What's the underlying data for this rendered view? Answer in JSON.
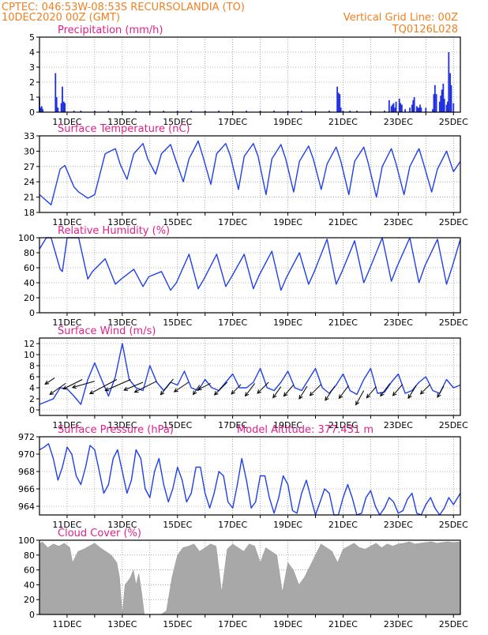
{
  "header": {
    "line1_left": "CPTEC:   046:53W-08:53S   RECURSOLANDIA (TO)",
    "line2_left": "10DEC2020 00Z (GMT)",
    "line2_right": "Vertical Grid Line: 00Z",
    "line3_right": "TQ0126L028"
  },
  "colors": {
    "header": "#f08020",
    "title": "#e0208a",
    "series": "#2040e8",
    "bars": "#2030e0",
    "cloud": "#a8a8a8"
  },
  "chart_data": [
    {
      "id": "precip",
      "type": "bar",
      "title": "Precipitation (mm/h)",
      "x_unit": "days since 10DEC2020 00Z",
      "xlim": [
        0,
        15.25
      ],
      "ylim": [
        0,
        5
      ],
      "yticks": [
        "0",
        "1",
        "2",
        "3",
        "4",
        "5"
      ],
      "xtick_labels": [
        "11DEC",
        "13DEC",
        "15DEC",
        "17DEC",
        "19DEC",
        "21DEC",
        "23DEC",
        "25DEC"
      ],
      "show_xtick_labels": true,
      "x": [
        0.0,
        0.04,
        0.08,
        0.12,
        0.58,
        0.62,
        0.67,
        0.79,
        0.83,
        0.88,
        0.92,
        1.25,
        1.5,
        2.0,
        2.5,
        3.0,
        3.5,
        4.0,
        4.5,
        5.0,
        5.5,
        6.0,
        6.5,
        7.0,
        7.5,
        8.0,
        8.5,
        9.0,
        9.5,
        10.0,
        10.5,
        10.79,
        10.83,
        10.88,
        10.92,
        11.0,
        11.25,
        11.5,
        12.0,
        12.5,
        12.67,
        12.75,
        12.79,
        12.83,
        12.88,
        12.92,
        13.04,
        13.08,
        13.13,
        13.25,
        13.42,
        13.5,
        13.54,
        13.58,
        13.67,
        13.71,
        13.75,
        13.79,
        13.83,
        14.0,
        14.25,
        14.29,
        14.33,
        14.38,
        14.5,
        14.54,
        14.58,
        14.63,
        14.67,
        14.75,
        14.79,
        14.83,
        14.88,
        14.92,
        15.0
      ],
      "values": [
        1.0,
        0.3,
        0.4,
        0.2,
        2.6,
        1.0,
        0.3,
        0.6,
        1.7,
        0.7,
        0.6,
        0.1,
        0.1,
        0.1,
        0.1,
        0.1,
        0.1,
        0.1,
        0.1,
        0.1,
        0.1,
        0.1,
        0.1,
        0.1,
        0.1,
        0.1,
        0.1,
        0.1,
        0.1,
        0.1,
        0.1,
        1.7,
        1.3,
        1.2,
        0.3,
        0.1,
        0.1,
        0.1,
        0.1,
        0.1,
        0.8,
        0.4,
        0.5,
        0.6,
        0.3,
        0.7,
        0.9,
        0.6,
        0.5,
        0.2,
        0.3,
        0.5,
        0.8,
        1.0,
        0.4,
        0.3,
        0.3,
        0.5,
        0.3,
        0.3,
        0.2,
        1.2,
        1.8,
        1.2,
        0.7,
        1.1,
        1.5,
        1.9,
        0.9,
        0.5,
        0.7,
        4.0,
        2.6,
        1.8,
        0.6
      ]
    },
    {
      "id": "temp",
      "type": "line",
      "title": "Surface Temperature (nC)",
      "x_unit": "days since 10DEC2020 00Z",
      "xlim": [
        0,
        15.25
      ],
      "ylim": [
        18,
        33
      ],
      "yticks": [
        "18",
        "21",
        "24",
        "27",
        "30",
        "33"
      ],
      "xtick_labels": [
        "11DEC",
        "13DEC",
        "15DEC",
        "17DEC",
        "19DEC",
        "21DEC",
        "23DEC",
        "25DEC"
      ],
      "show_xtick_labels": true,
      "x": [
        0.0,
        0.42,
        0.75,
        0.92,
        1.25,
        1.42,
        1.75,
        1.83,
        2.0,
        2.38,
        2.75,
        2.92,
        3.17,
        3.42,
        3.75,
        3.92,
        4.21,
        4.42,
        4.75,
        4.92,
        5.21,
        5.42,
        5.75,
        5.92,
        6.21,
        6.42,
        6.75,
        6.92,
        7.21,
        7.42,
        7.75,
        7.92,
        8.21,
        8.42,
        8.75,
        8.92,
        9.21,
        9.42,
        9.75,
        9.92,
        10.21,
        10.42,
        10.75,
        10.92,
        11.21,
        11.42,
        11.75,
        11.92,
        12.21,
        12.42,
        12.75,
        12.92,
        13.21,
        13.42,
        13.75,
        13.92,
        14.21,
        14.42,
        14.75,
        15.0,
        15.25
      ],
      "y": [
        21.5,
        19.5,
        26.5,
        27.2,
        23.0,
        22.0,
        20.8,
        21.0,
        21.5,
        29.5,
        30.5,
        27.5,
        24.5,
        29.5,
        31.5,
        28.5,
        25.5,
        29.5,
        31.3,
        28.5,
        24.0,
        28.5,
        32.0,
        29.0,
        23.5,
        29.5,
        31.5,
        29.0,
        22.5,
        29.0,
        31.5,
        29.0,
        21.5,
        28.5,
        31.3,
        28.5,
        22.0,
        28.0,
        31.0,
        28.5,
        22.5,
        27.5,
        30.8,
        28.0,
        21.5,
        28.0,
        30.8,
        27.5,
        21.0,
        27.0,
        30.5,
        27.5,
        21.5,
        27.0,
        30.5,
        27.5,
        22.0,
        26.5,
        30.0,
        26.0,
        28.0
      ]
    },
    {
      "id": "rh",
      "type": "line",
      "title": "Relative Humidity (%)",
      "x_unit": "days since 10DEC2020 00Z",
      "xlim": [
        0,
        15.25
      ],
      "ylim": [
        0,
        100
      ],
      "yticks": [
        "0",
        "20",
        "40",
        "60",
        "80",
        "100"
      ],
      "xtick_labels": [
        "11DEC",
        "13DEC",
        "15DEC",
        "17DEC",
        "19DEC",
        "21DEC",
        "23DEC",
        "25DEC"
      ],
      "show_xtick_labels": true,
      "x": [
        0.0,
        0.25,
        0.42,
        0.75,
        0.83,
        1.0,
        1.25,
        1.42,
        1.75,
        1.92,
        2.38,
        2.75,
        2.96,
        3.42,
        3.75,
        3.96,
        4.42,
        4.75,
        4.96,
        5.42,
        5.75,
        5.96,
        6.42,
        6.75,
        6.96,
        7.42,
        7.75,
        7.96,
        8.42,
        8.75,
        8.96,
        9.42,
        9.75,
        9.96,
        10.42,
        10.75,
        10.96,
        11.42,
        11.75,
        11.96,
        12.42,
        12.75,
        12.96,
        13.42,
        13.75,
        13.96,
        14.42,
        14.75,
        14.96,
        15.25
      ],
      "y": [
        85,
        100,
        100,
        58,
        55,
        100,
        100,
        100,
        45,
        55,
        72,
        38,
        45,
        58,
        35,
        48,
        55,
        30,
        40,
        78,
        32,
        45,
        78,
        35,
        48,
        78,
        32,
        50,
        82,
        30,
        48,
        80,
        38,
        55,
        98,
        38,
        55,
        96,
        40,
        58,
        100,
        42,
        62,
        100,
        40,
        62,
        98,
        38,
        62,
        98
      ]
    },
    {
      "id": "wind",
      "type": "line",
      "title": "Surface Wind (m/s)",
      "x_unit": "days since 10DEC2020 00Z",
      "xlim": [
        0,
        15.25
      ],
      "ylim": [
        -1,
        13
      ],
      "yticks": [
        "0",
        "2",
        "4",
        "6",
        "8",
        "10",
        "12"
      ],
      "ytick_values": [
        0,
        2,
        4,
        6,
        8,
        10,
        12
      ],
      "xtick_labels": [
        "11DEC",
        "13DEC",
        "15DEC",
        "17DEC",
        "19DEC",
        "21DEC",
        "23DEC",
        "25DEC"
      ],
      "show_xtick_labels": true,
      "x": [
        0.0,
        0.25,
        0.5,
        0.75,
        1.0,
        1.25,
        1.5,
        1.75,
        2.0,
        2.25,
        2.5,
        2.75,
        3.0,
        3.25,
        3.5,
        3.75,
        4.0,
        4.25,
        4.5,
        4.75,
        5.0,
        5.25,
        5.5,
        5.75,
        6.0,
        6.25,
        6.5,
        6.75,
        7.0,
        7.25,
        7.5,
        7.75,
        8.0,
        8.25,
        8.5,
        8.75,
        9.0,
        9.25,
        9.5,
        9.75,
        10.0,
        10.25,
        10.5,
        10.75,
        11.0,
        11.25,
        11.5,
        11.75,
        12.0,
        12.25,
        12.5,
        12.75,
        13.0,
        13.25,
        13.5,
        13.75,
        14.0,
        14.25,
        14.5,
        14.75,
        15.0,
        15.25
      ],
      "y": [
        1.0,
        1.5,
        2.0,
        4.0,
        3.8,
        2.5,
        1.0,
        5.5,
        8.5,
        5.5,
        2.5,
        6.0,
        12.0,
        5.5,
        4.0,
        3.5,
        8.0,
        5.0,
        3.5,
        5.0,
        4.5,
        7.0,
        4.0,
        3.5,
        5.5,
        4.0,
        3.5,
        5.0,
        6.5,
        4.0,
        4.0,
        5.0,
        7.5,
        4.0,
        3.5,
        5.0,
        7.0,
        4.0,
        3.5,
        5.5,
        7.5,
        4.0,
        3.0,
        4.5,
        6.5,
        3.5,
        2.8,
        5.5,
        7.5,
        3.0,
        3.2,
        5.0,
        6.5,
        3.0,
        3.5,
        5.0,
        6.0,
        3.5,
        3.0,
        5.5,
        4.0,
        4.5
      ],
      "vectors": [
        {
          "x": 0.55,
          "y": 5.8,
          "u": -0.3,
          "v": -0.2
        },
        {
          "x": 0.95,
          "y": 4.8,
          "u": -0.5,
          "v": -0.35
        },
        {
          "x": 1.55,
          "y": 5.5,
          "u": -0.6,
          "v": -0.3
        },
        {
          "x": 2.0,
          "y": 5.2,
          "u": -0.7,
          "v": -0.2
        },
        {
          "x": 2.8,
          "y": 5.5,
          "u": -0.85,
          "v": -0.45
        },
        {
          "x": 3.3,
          "y": 5.5,
          "u": -0.8,
          "v": -0.35
        },
        {
          "x": 3.75,
          "y": 5.0,
          "u": -0.6,
          "v": -0.25
        },
        {
          "x": 4.25,
          "y": 5.2,
          "u": -0.7,
          "v": -0.35
        },
        {
          "x": 4.85,
          "y": 5.6,
          "u": -0.4,
          "v": -0.5
        },
        {
          "x": 5.4,
          "y": 5.0,
          "u": -0.45,
          "v": -0.3
        },
        {
          "x": 5.8,
          "y": 4.5,
          "u": -0.2,
          "v": -0.3
        },
        {
          "x": 6.2,
          "y": 4.8,
          "u": -0.4,
          "v": -0.2
        },
        {
          "x": 6.8,
          "y": 5.0,
          "u": -0.4,
          "v": -0.4
        },
        {
          "x": 7.3,
          "y": 4.6,
          "u": -0.3,
          "v": -0.3
        },
        {
          "x": 7.8,
          "y": 4.8,
          "u": -0.3,
          "v": -0.4
        },
        {
          "x": 8.3,
          "y": 5.0,
          "u": -0.35,
          "v": -0.35
        },
        {
          "x": 8.75,
          "y": 4.2,
          "u": -0.25,
          "v": -0.35
        },
        {
          "x": 9.2,
          "y": 4.5,
          "u": -0.3,
          "v": -0.35
        },
        {
          "x": 9.7,
          "y": 4.3,
          "u": -0.25,
          "v": -0.4
        },
        {
          "x": 10.2,
          "y": 4.6,
          "u": -0.35,
          "v": -0.35
        },
        {
          "x": 10.7,
          "y": 4.3,
          "u": -0.3,
          "v": -0.45
        },
        {
          "x": 11.2,
          "y": 4.4,
          "u": -0.3,
          "v": -0.4
        },
        {
          "x": 11.75,
          "y": 3.5,
          "u": -0.25,
          "v": -0.45
        },
        {
          "x": 12.2,
          "y": 4.2,
          "u": -0.3,
          "v": -0.35
        },
        {
          "x": 12.7,
          "y": 4.8,
          "u": -0.3,
          "v": -0.4
        },
        {
          "x": 13.15,
          "y": 4.6,
          "u": -0.3,
          "v": -0.35
        },
        {
          "x": 13.65,
          "y": 4.4,
          "u": -0.25,
          "v": -0.4
        },
        {
          "x": 14.15,
          "y": 4.6,
          "u": -0.3,
          "v": -0.3
        },
        {
          "x": 14.65,
          "y": 4.3,
          "u": -0.2,
          "v": -0.35
        }
      ]
    },
    {
      "id": "pres",
      "type": "line",
      "title": "Surface Pressure (hPa)",
      "subtitle": "Model Altitude: 377.431  m",
      "x_unit": "days since 10DEC2020 00Z",
      "xlim": [
        0,
        15.25
      ],
      "ylim": [
        963,
        972
      ],
      "yticks": [
        "964",
        "966",
        "968",
        "970",
        "972"
      ],
      "ytick_values": [
        964,
        966,
        968,
        970,
        972
      ],
      "xtick_labels": [
        "11DEC",
        "13DEC",
        "15DEC",
        "17DEC",
        "19DEC",
        "21DEC",
        "23DEC",
        "25DEC"
      ],
      "show_xtick_labels": true,
      "x": [
        0.0,
        0.17,
        0.33,
        0.5,
        0.67,
        0.83,
        1.0,
        1.17,
        1.33,
        1.5,
        1.67,
        1.83,
        2.0,
        2.17,
        2.33,
        2.5,
        2.67,
        2.83,
        3.0,
        3.17,
        3.33,
        3.5,
        3.67,
        3.83,
        4.0,
        4.17,
        4.33,
        4.5,
        4.67,
        4.83,
        5.0,
        5.17,
        5.33,
        5.5,
        5.67,
        5.83,
        6.0,
        6.17,
        6.33,
        6.5,
        6.67,
        6.83,
        7.0,
        7.17,
        7.33,
        7.5,
        7.67,
        7.83,
        8.0,
        8.17,
        8.33,
        8.5,
        8.67,
        8.83,
        9.0,
        9.17,
        9.33,
        9.5,
        9.67,
        9.83,
        10.0,
        10.17,
        10.33,
        10.5,
        10.67,
        10.83,
        11.0,
        11.17,
        11.33,
        11.5,
        11.67,
        11.83,
        12.0,
        12.17,
        12.33,
        12.5,
        12.67,
        12.83,
        13.0,
        13.17,
        13.33,
        13.5,
        13.67,
        13.83,
        14.0,
        14.17,
        14.33,
        14.5,
        14.67,
        14.83,
        15.0,
        15.25
      ],
      "y": [
        970.5,
        970.8,
        971.2,
        969.5,
        967.0,
        968.5,
        970.8,
        970.0,
        967.5,
        966.5,
        968.5,
        971.0,
        970.5,
        968.0,
        965.5,
        966.5,
        969.5,
        970.5,
        968.0,
        965.5,
        967.0,
        970.5,
        969.5,
        966.0,
        965.0,
        968.0,
        969.5,
        966.5,
        964.5,
        966.0,
        968.5,
        967.0,
        964.5,
        965.5,
        968.5,
        968.5,
        965.5,
        963.8,
        965.5,
        968.0,
        967.5,
        964.5,
        963.8,
        966.5,
        969.5,
        967.0,
        963.8,
        964.5,
        967.5,
        967.5,
        965.0,
        963.2,
        965.0,
        967.5,
        966.5,
        963.5,
        963.2,
        965.5,
        967.0,
        965.0,
        962.8,
        964.5,
        966.0,
        965.5,
        963.0,
        962.8,
        965.0,
        966.5,
        965.0,
        963.0,
        963.2,
        965.0,
        965.8,
        964.0,
        962.8,
        963.8,
        965.0,
        964.5,
        963.2,
        963.5,
        964.8,
        965.5,
        963.2,
        962.5,
        964.2,
        965.0,
        963.8,
        962.2,
        963.8,
        965.0,
        964.2,
        965.5
      ]
    },
    {
      "id": "cloud",
      "type": "area",
      "title": "Cloud Cover (%)",
      "x_unit": "days since 10DEC2020 00Z",
      "xlim": [
        0,
        15.25
      ],
      "ylim": [
        0,
        100
      ],
      "yticks": [
        "0",
        "20",
        "40",
        "60",
        "80",
        "100"
      ],
      "xtick_labels": [
        "11DEC",
        "13DEC",
        "15DEC",
        "17DEC",
        "19DEC",
        "21DEC",
        "23DEC",
        "25DEC"
      ],
      "show_xtick_labels": true,
      "x": [
        0.0,
        0.1,
        0.3,
        0.5,
        0.7,
        0.9,
        1.1,
        1.2,
        1.4,
        1.6,
        1.8,
        2.0,
        2.2,
        2.4,
        2.6,
        2.8,
        2.9,
        3.0,
        3.1,
        3.3,
        3.4,
        3.5,
        3.6,
        3.7,
        3.8,
        4.0,
        4.2,
        4.4,
        4.6,
        4.8,
        5.0,
        5.2,
        5.4,
        5.6,
        5.8,
        6.0,
        6.2,
        6.4,
        6.6,
        6.8,
        7.0,
        7.2,
        7.4,
        7.6,
        7.8,
        8.0,
        8.2,
        8.4,
        8.6,
        8.8,
        9.0,
        9.2,
        9.4,
        9.6,
        9.8,
        10.0,
        10.2,
        10.4,
        10.6,
        10.8,
        11.0,
        11.2,
        11.4,
        11.6,
        11.8,
        12.0,
        12.2,
        12.4,
        12.6,
        12.8,
        13.0,
        13.2,
        13.4,
        13.6,
        13.8,
        14.0,
        14.2,
        14.4,
        14.6,
        14.8,
        15.0,
        15.25
      ],
      "y": [
        95,
        98,
        90,
        95,
        92,
        96,
        90,
        70,
        85,
        88,
        92,
        96,
        90,
        85,
        80,
        70,
        50,
        0,
        40,
        50,
        60,
        40,
        55,
        30,
        0,
        0,
        0,
        0,
        5,
        50,
        80,
        90,
        92,
        95,
        85,
        90,
        95,
        92,
        30,
        88,
        95,
        90,
        85,
        95,
        92,
        70,
        90,
        85,
        80,
        30,
        70,
        60,
        40,
        50,
        65,
        80,
        95,
        90,
        85,
        70,
        88,
        92,
        96,
        90,
        88,
        92,
        96,
        90,
        95,
        92,
        95,
        96,
        98,
        95,
        96,
        97,
        98,
        96,
        97,
        98,
        97,
        98
      ]
    }
  ]
}
